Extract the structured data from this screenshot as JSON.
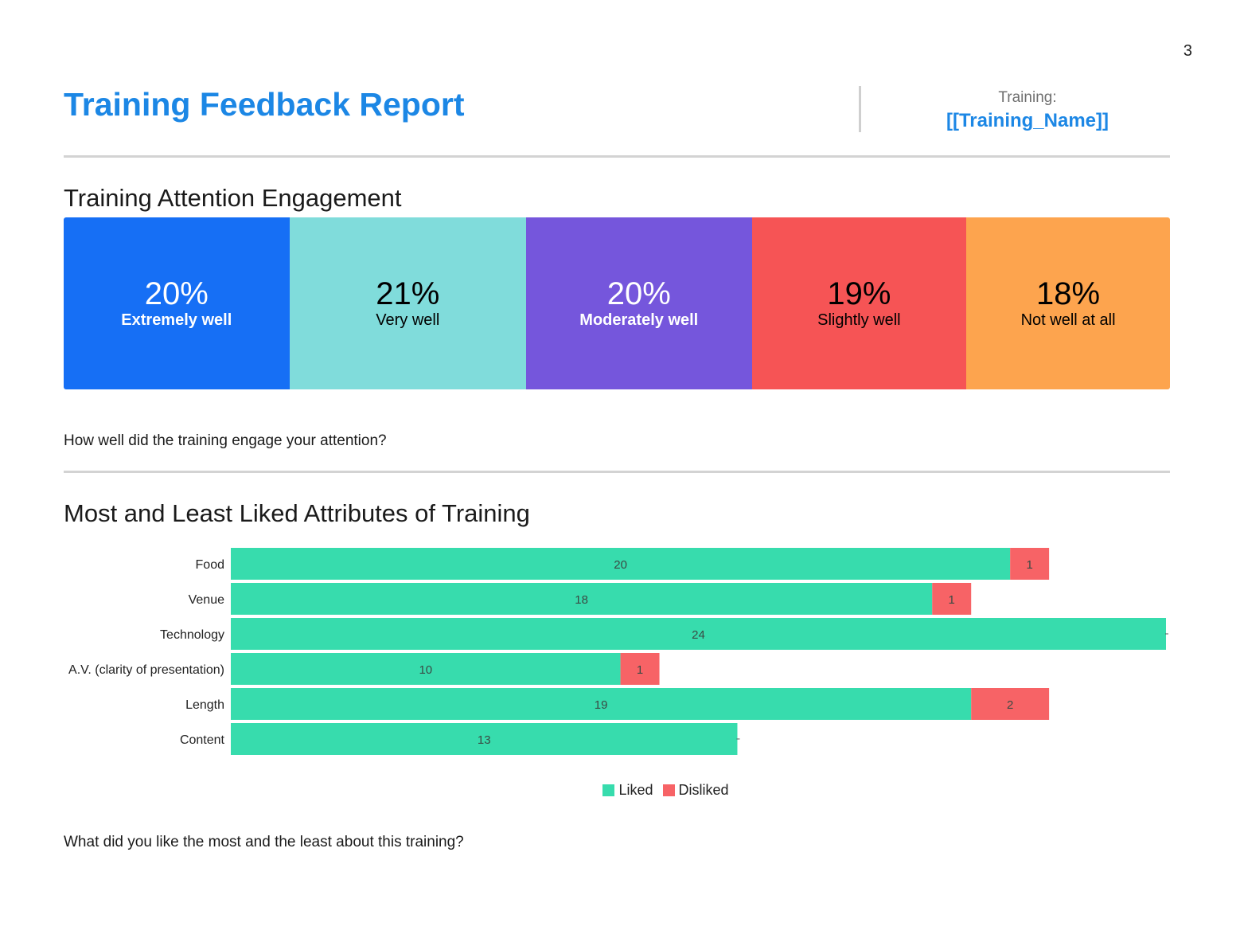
{
  "page_number": "3",
  "header": {
    "title": "Training Feedback Report",
    "training_label": "Training:",
    "training_name": "[[Training_Name]]"
  },
  "engagement": {
    "title": "Training Attention Engagement",
    "question": "How well did the training engage your attention?",
    "segments": [
      {
        "pct": "20%",
        "label": "Extremely well",
        "color": "#166ff5",
        "text_color": "#ffffff",
        "bold": true,
        "share": 20.4
      },
      {
        "pct": "21%",
        "label": "Very well",
        "color": "#80dcdb",
        "text_color": "#000000",
        "bold": false,
        "share": 21.4
      },
      {
        "pct": "20%",
        "label": "Moderately well",
        "color": "#7556dc",
        "text_color": "#ffffff",
        "bold": true,
        "share": 20.4
      },
      {
        "pct": "19%",
        "label": "Slightly well",
        "color": "#f65455",
        "text_color": "#000000",
        "bold": false,
        "share": 19.4
      },
      {
        "pct": "18%",
        "label": "Not well at all",
        "color": "#fda44e",
        "text_color": "#000000",
        "bold": false,
        "share": 18.4
      }
    ]
  },
  "attributes": {
    "title": "Most and Least Liked Attributes of Training",
    "question": "What did you like the most and the least about this training?"
  },
  "chart_data": {
    "type": "bar",
    "orientation": "horizontal",
    "stacked": true,
    "categories": [
      "Food",
      "Venue",
      "Technology",
      "A.V. (clarity of presentation)",
      "Length",
      "Content"
    ],
    "series": [
      {
        "name": "Liked",
        "values": [
          20,
          18,
          24,
          10,
          19,
          13
        ],
        "color": "#37dcad"
      },
      {
        "name": "Disliked",
        "values": [
          1,
          1,
          0,
          1,
          2,
          0
        ],
        "color": "#f76366"
      }
    ],
    "xlim": [
      0,
      24
    ],
    "grid": false,
    "legend": "bottom-center",
    "value_labels": true
  }
}
